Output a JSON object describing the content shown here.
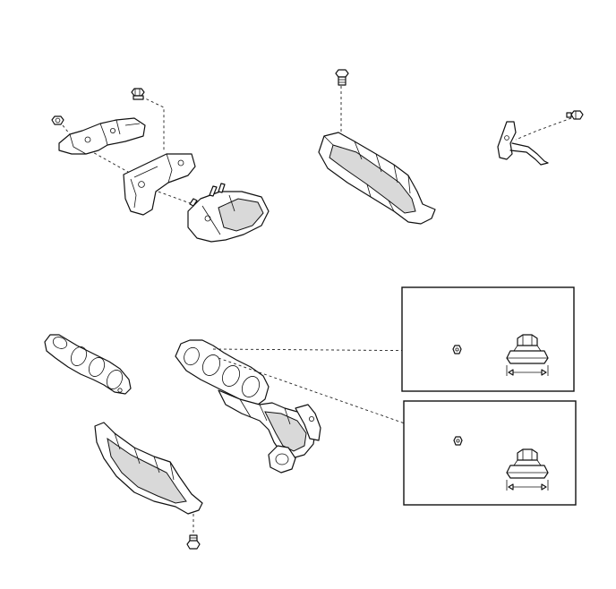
{
  "diagram": {
    "colors": {
      "line": "#111111",
      "shade": "#d9d9d9",
      "background": "#ffffff"
    },
    "parts": [
      "bolt-upper-left",
      "nut-left",
      "bracket-upper",
      "bracket-stay",
      "heat-insulator-small",
      "bolt-center",
      "heat-insulator-upper",
      "bolt-right",
      "stay-right",
      "manifold-gasket",
      "exhaust-manifold",
      "heat-insulator-lower",
      "bolt-lower",
      "detail-box-top",
      "detail-box-bottom"
    ]
  }
}
